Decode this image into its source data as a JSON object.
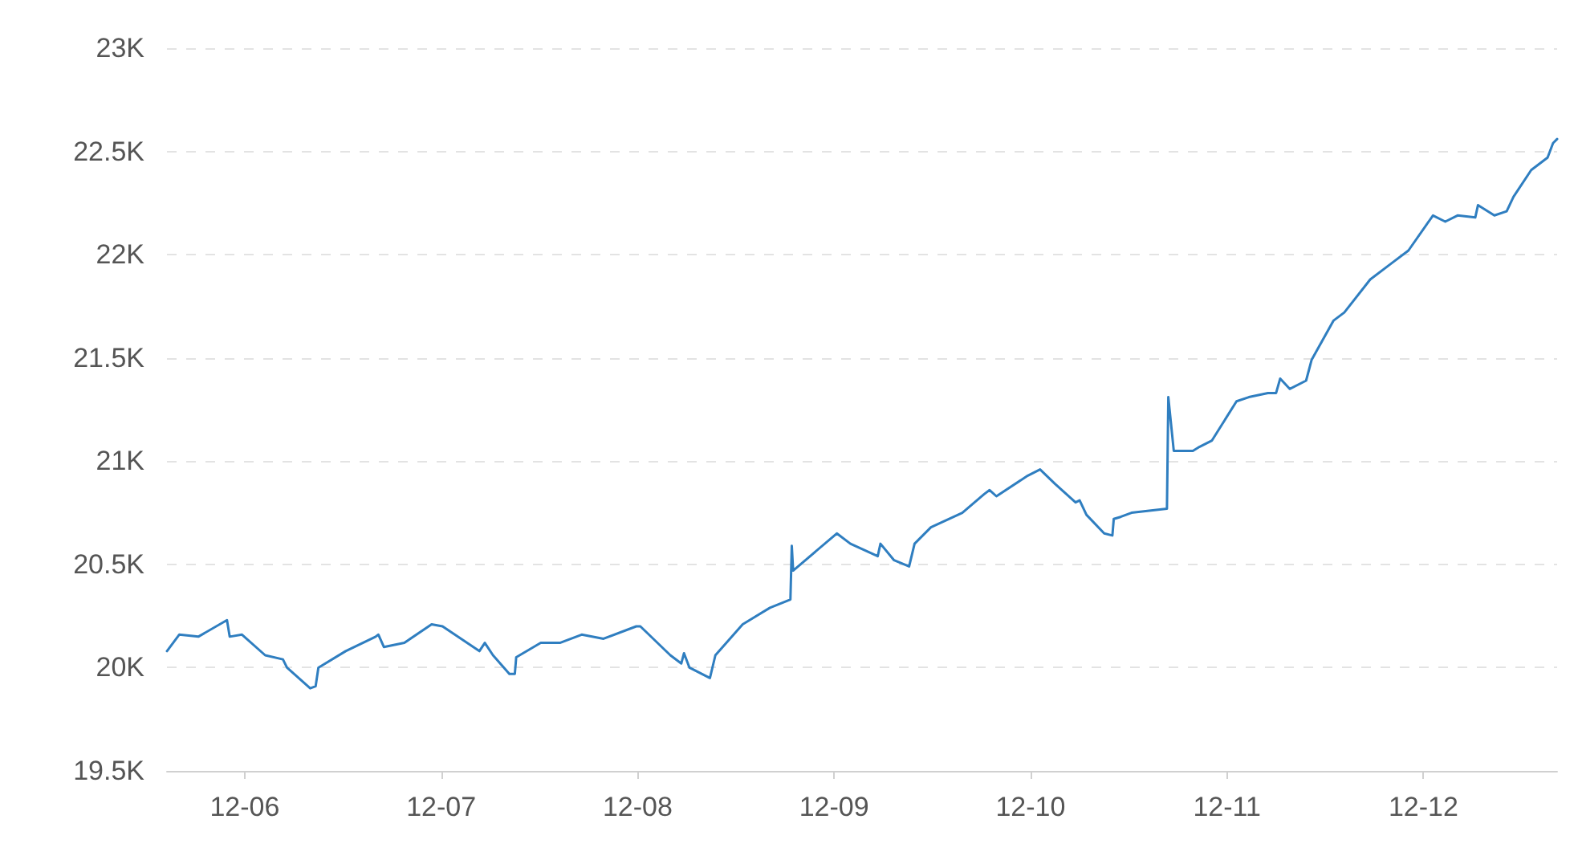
{
  "chart_data": {
    "type": "line",
    "color": "#2f7ec0",
    "grid": "y",
    "marker": "none",
    "line_style": "solid",
    "x": [
      "--12-05T14:30",
      "--12-05T16:00",
      "--12-05T18:20",
      "--12-05T21:50",
      "--12-05T22:10",
      "--12-05T23:40",
      "--12-06T02:30",
      "--12-06T04:40",
      "--12-06T05:10",
      "--12-06T08:00",
      "--12-06T08:40",
      "--12-06T09:00",
      "--12-06T12:20",
      "--12-06T16:00",
      "--12-06T16:20",
      "--12-06T17:00",
      "--12-06T19:30",
      "--12-06T22:50",
      "--12-07T00:10",
      "--12-07T04:40",
      "--12-07T05:20",
      "--12-07T06:20",
      "--12-07T08:20",
      "--12-07T09:00",
      "--12-07T09:10",
      "--12-07T12:10",
      "--12-07T14:30",
      "--12-07T17:10",
      "--12-07T19:50",
      "--12-07T23:50",
      "--12-08T00:20",
      "--12-08T04:00",
      "--12-08T05:20",
      "--12-08T05:40",
      "--12-08T06:20",
      "--12-08T08:50",
      "--12-08T09:30",
      "--12-08T12:50",
      "--12-08T16:10",
      "--12-08T18:40",
      "--12-08T18:50",
      "--12-08T19:00",
      "--12-09T00:20",
      "--12-09T02:00",
      "--12-09T05:20",
      "--12-09T05:40",
      "--12-09T07:20",
      "--12-09T09:10",
      "--12-09T09:50",
      "--12-09T11:50",
      "--12-09T15:40",
      "--12-09T18:20",
      "--12-09T19:00",
      "--12-09T19:50",
      "--12-09T23:40",
      "--12-10T01:10",
      "--12-10T03:00",
      "--12-10T05:30",
      "--12-10T06:00",
      "--12-10T06:50",
      "--12-10T09:00",
      "--12-10T10:00",
      "--12-10T10:10",
      "--12-10T11:00",
      "--12-10T12:20",
      "--12-10T16:40",
      "--12-10T16:50",
      "--12-10T17:30",
      "--12-10T19:50",
      "--12-10T20:40",
      "--12-10T22:10",
      "--12-11T01:10",
      "--12-11T02:40",
      "--12-11T05:00",
      "--12-11T06:00",
      "--12-11T06:30",
      "--12-11T07:40",
      "--12-11T09:40",
      "--12-11T10:20",
      "--12-11T13:00",
      "--12-11T14:20",
      "--12-11T17:30",
      "--12-11T20:10",
      "--12-11T22:10",
      "--12-12T01:10",
      "--12-12T02:40",
      "--12-12T04:10",
      "--12-12T06:20",
      "--12-12T06:40",
      "--12-12T08:40",
      "--12-12T10:10",
      "--12-12T11:00",
      "--12-12T13:10",
      "--12-12T15:10",
      "--12-12T15:50",
      "--12-12T16:20"
    ],
    "values": [
      20080,
      20160,
      20150,
      20230,
      20150,
      20160,
      20060,
      20040,
      20000,
      19900,
      19910,
      20000,
      20080,
      20150,
      20160,
      20100,
      20120,
      20210,
      20200,
      20080,
      20120,
      20060,
      19970,
      19970,
      20050,
      20120,
      20120,
      20160,
      20140,
      20200,
      20200,
      20060,
      20020,
      20070,
      20000,
      19950,
      20060,
      20210,
      20290,
      20330,
      20590,
      20470,
      20650,
      20600,
      20540,
      20600,
      20520,
      20490,
      20600,
      20680,
      20750,
      20840,
      20860,
      20830,
      20930,
      20960,
      20890,
      20800,
      20810,
      20740,
      20650,
      20640,
      20720,
      20730,
      20750,
      20770,
      21310,
      21050,
      21050,
      21070,
      21100,
      21290,
      21310,
      21330,
      21330,
      21400,
      21350,
      21390,
      21490,
      21680,
      21720,
      21880,
      21960,
      22020,
      22190,
      22160,
      22190,
      22180,
      22240,
      22190,
      22210,
      22280,
      22410,
      22470,
      22540,
      22560
    ],
    "xlim": [
      "--12-05T14:30",
      "--12-12T16:20"
    ],
    "xticks": [
      {
        "value": "--12-06",
        "label": "12-06"
      },
      {
        "value": "--12-07",
        "label": "12-07"
      },
      {
        "value": "--12-08",
        "label": "12-08"
      },
      {
        "value": "--12-09",
        "label": "12-09"
      },
      {
        "value": "--12-10",
        "label": "12-10"
      },
      {
        "value": "--12-11",
        "label": "12-11"
      },
      {
        "value": "--12-12",
        "label": "12-12"
      }
    ],
    "ylim": [
      19500,
      23000
    ],
    "yticks": [
      {
        "value": 19500,
        "label": "19.5K"
      },
      {
        "value": 20000,
        "label": "20K"
      },
      {
        "value": 20500,
        "label": "20.5K"
      },
      {
        "value": 21000,
        "label": "21K"
      },
      {
        "value": 21500,
        "label": "21.5K"
      },
      {
        "value": 22000,
        "label": "22K"
      },
      {
        "value": 22500,
        "label": "22.5K"
      },
      {
        "value": 23000,
        "label": "23K"
      }
    ]
  }
}
